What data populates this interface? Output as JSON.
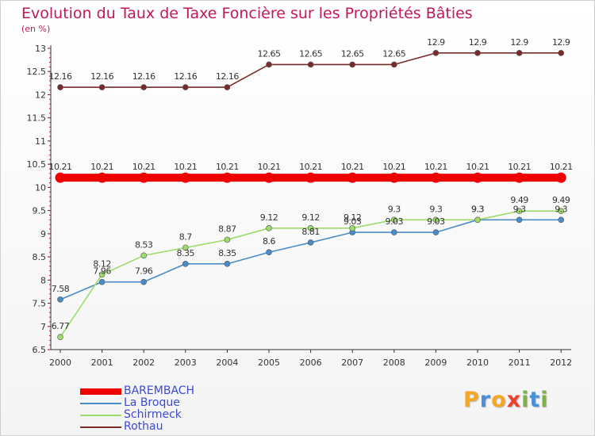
{
  "header": {
    "title": "Evolution du Taux de Taxe Foncière sur les Propriétés Bâties",
    "unit": "(en %)"
  },
  "brand": {
    "logo_text": "Proxiti",
    "logo_colors": [
      "#f5a623",
      "#4a90d9",
      "#f5a623",
      "#e8412c",
      "#7cb342",
      "#4a90d9",
      "#7cb342"
    ]
  },
  "chart_data": {
    "type": "line",
    "title": "Evolution du Taux de Taxe Foncière sur les Propriétés Bâties",
    "ylabel": "(en %)",
    "xlabel": "",
    "x": [
      "2000",
      "2001",
      "2002",
      "2003",
      "2004",
      "2005",
      "2006",
      "2007",
      "2008",
      "2009",
      "2010",
      "2011",
      "2012"
    ],
    "ylim": [
      6.5,
      13
    ],
    "yticks": [
      "6.5",
      "7",
      "7.5",
      "8",
      "8.5",
      "9",
      "9.5",
      "10",
      "10.5",
      "11",
      "11.5",
      "12",
      "12.5",
      "13"
    ],
    "grid": false,
    "legend_position": "bottom-left",
    "series": [
      {
        "name": "BAREMBACH",
        "color": "#ee0000",
        "values": [
          10.21,
          10.21,
          10.21,
          10.21,
          10.21,
          10.21,
          10.21,
          10.21,
          10.21,
          10.21,
          10.21,
          10.21,
          10.21
        ],
        "labels": [
          "10.21",
          "10.21",
          "10.21",
          "10.21",
          "10.21",
          "10.21",
          "10.21",
          "10.21",
          "10.21",
          "10.21",
          "10.21",
          "10.21",
          "10.21"
        ]
      },
      {
        "name": "La Broque",
        "color": "#4a8cc9",
        "values": [
          7.58,
          7.96,
          7.96,
          8.35,
          8.35,
          8.6,
          8.81,
          9.03,
          9.03,
          9.03,
          9.3,
          9.3,
          9.3
        ],
        "labels": [
          "7.58",
          "7.96",
          "7.96",
          "8.35",
          "8.35",
          "8.6",
          "8.81",
          "9.03",
          "9.03",
          "9.03",
          "9.3",
          "9.3",
          "9.3"
        ]
      },
      {
        "name": "Schirmeck",
        "color": "#9ddc6c",
        "values": [
          6.77,
          8.12,
          8.53,
          8.7,
          8.87,
          9.12,
          9.12,
          9.12,
          9.3,
          9.3,
          9.3,
          9.49,
          9.49
        ],
        "labels": [
          "6.77",
          "8.12",
          "8.53",
          "8.7",
          "8.87",
          "9.12",
          "9.12",
          "9.12",
          "9.3",
          "9.3",
          "9.3",
          "9.49",
          "9.49"
        ]
      },
      {
        "name": "Rothau",
        "color": "#7a2a2a",
        "values": [
          12.16,
          12.16,
          12.16,
          12.16,
          12.16,
          12.65,
          12.65,
          12.65,
          12.65,
          12.9,
          12.9,
          12.9,
          12.9
        ],
        "labels": [
          "12.16",
          "12.16",
          "12.16",
          "12.16",
          "12.16",
          "12.65",
          "12.65",
          "12.65",
          "12.65",
          "12.9",
          "12.9",
          "12.9",
          "12.9"
        ]
      }
    ]
  }
}
